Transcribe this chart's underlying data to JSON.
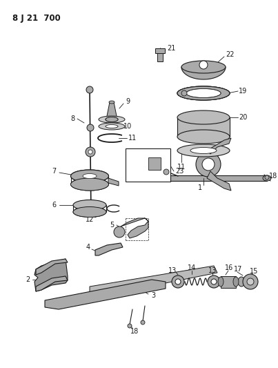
{
  "title": "8 J 21  700",
  "bg_color": "#ffffff",
  "lc": "#1a1a1a",
  "gc": "#aaaaaa",
  "fig_width": 4.03,
  "fig_height": 5.33,
  "dpi": 100
}
